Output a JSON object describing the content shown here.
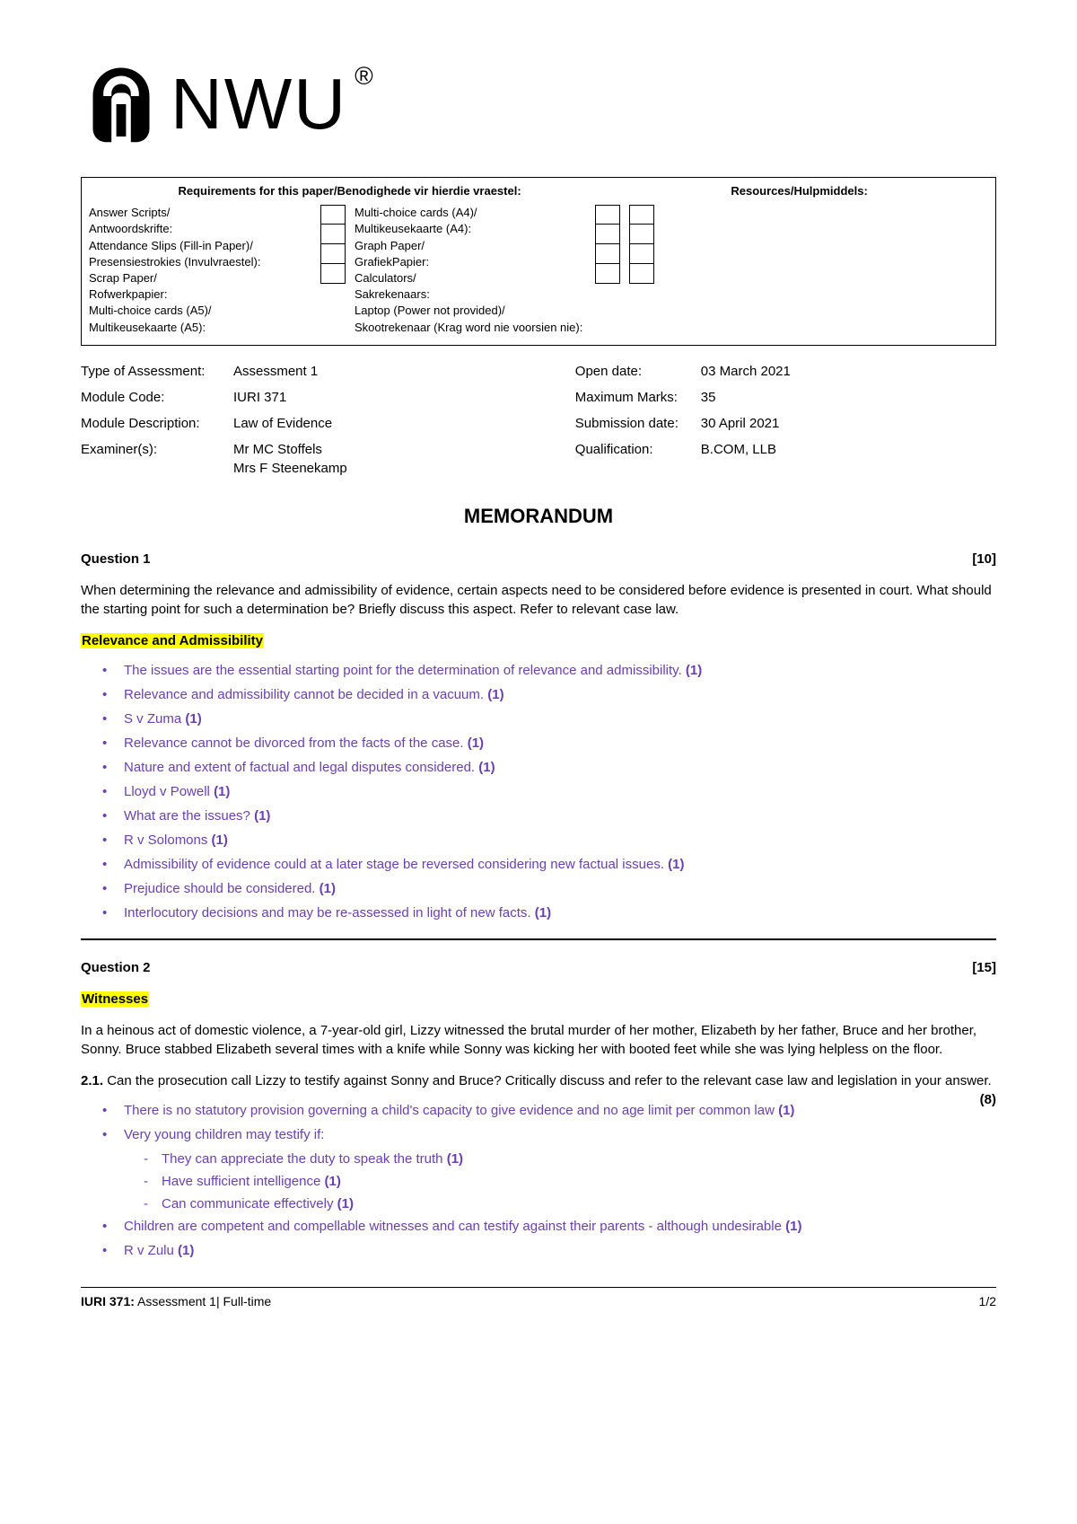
{
  "logo": {
    "text": "NWU",
    "reg": "®"
  },
  "req": {
    "header_left": "Requirements for this paper/Benodighede vir hierdie vraestel:",
    "header_right": "Resources/Hulpmiddels:",
    "col1": [
      "Answer Scripts/",
      "Antwoordskrifte:",
      "Attendance Slips (Fill-in Paper)/",
      "Presensiestrokies (Invulvraestel):",
      "Scrap Paper/",
      "Rofwerkpapier:",
      "Multi-choice cards (A5)/",
      "Multikeusekaarte (A5):"
    ],
    "col2": [
      "Multi-choice cards (A4)/",
      "Multikeusekaarte (A4):",
      "Graph Paper/",
      "GrafiekPapier:",
      "Calculators/",
      "Sakrekenaars:",
      "Laptop (Power not provided)/",
      "Skootrekenaar (Krag word nie voorsien nie):"
    ]
  },
  "meta": {
    "left": [
      {
        "label": "Type of Assessment:",
        "value": "Assessment 1"
      },
      {
        "label": "Module Code:",
        "value": "IURI 371"
      },
      {
        "label": "Module Description:",
        "value": "Law of Evidence"
      },
      {
        "label": "Examiner(s):",
        "value": "Mr MC Stoffels\nMrs F Steenekamp"
      }
    ],
    "right": [
      {
        "label": "Open date:",
        "value": "03 March 2021"
      },
      {
        "label": "Maximum Marks:",
        "value": "35"
      },
      {
        "label": "Submission date:",
        "value": "30 April 2021"
      },
      {
        "label": "Qualification:",
        "value": "B.COM, LLB"
      }
    ]
  },
  "memo": "MEMORANDUM",
  "q1": {
    "title": "Question 1",
    "marks": "[10]",
    "text": "When determining the relevance and admissibility of evidence, certain aspects need to be considered before evidence is presented in court. What should the starting point for such a determination be? Briefly discuss this aspect. Refer to relevant case law.",
    "subhead": "Relevance and Admissibility",
    "points": [
      {
        "t": "The issues are the essential starting point for the determination of relevance and admissibility.",
        "m": "(1)"
      },
      {
        "t": "Relevance and admissibility cannot be decided in a vacuum.",
        "m": "(1)"
      },
      {
        "t": "S v Zuma",
        "m": "(1)"
      },
      {
        "t": "Relevance cannot be divorced from the facts of the case.",
        "m": "(1)"
      },
      {
        "t": "Nature and extent of factual and legal disputes considered.",
        "m": "(1)"
      },
      {
        "t": "Lloyd v Powell",
        "m": "(1)"
      },
      {
        "t": "What are the issues?",
        "m": "(1)"
      },
      {
        "t": "R v Solomons",
        "m": "(1)"
      },
      {
        "t": "Admissibility of evidence could at a later stage be reversed considering new factual issues.",
        "m": "(1)"
      },
      {
        "t": "Prejudice should be considered.",
        "m": "(1)"
      },
      {
        "t": "Interlocutory decisions and may be re-assessed in light of new facts.",
        "m": "(1)"
      }
    ]
  },
  "q2": {
    "title": "Question 2",
    "marks": "[15]",
    "subhead": "Witnesses",
    "text": "In a heinous act of domestic violence, a 7-year-old girl, Lizzy witnessed the brutal murder of her mother, Elizabeth by her father, Bruce and her brother, Sonny. Bruce stabbed Elizabeth several times with a knife while Sonny was kicking her with booted feet while she was lying helpless on the floor.",
    "sub_num": "2.1.",
    "sub_text": "Can the prosecution call Lizzy to testify against Sonny and Bruce? Critically discuss and refer to the relevant case law and legislation in your answer.",
    "sub_mark": "(8)",
    "points": [
      {
        "t": "There is no statutory provision governing a child's capacity to give evidence and no age limit per common law",
        "m": "(1)"
      },
      {
        "t": "Very young children may testify if:",
        "m": "",
        "sub": [
          {
            "t": "They can appreciate the duty to speak the truth",
            "m": "(1)"
          },
          {
            "t": "Have sufficient intelligence",
            "m": "(1)"
          },
          {
            "t": "Can communicate effectively",
            "m": "(1)"
          }
        ]
      },
      {
        "t": "Children are competent and compellable witnesses and can testify against their parents - although undesirable",
        "m": "(1)"
      },
      {
        "t": "R v Zulu",
        "m": "(1)"
      }
    ]
  },
  "footer": {
    "left_bold": "IURI 371:",
    "left_rest": " Assessment 1| Full-time",
    "right": "1/2"
  }
}
